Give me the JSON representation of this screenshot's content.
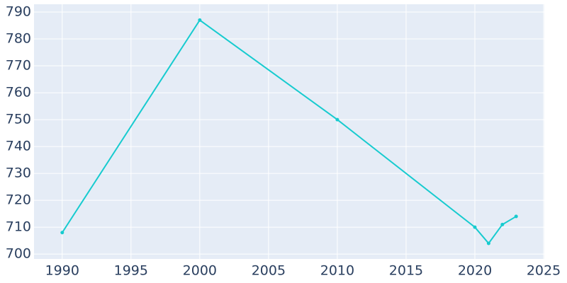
{
  "chart_data": {
    "type": "line",
    "x": [
      1990,
      2000,
      2010,
      2020,
      2021,
      2022,
      2023
    ],
    "series": [
      {
        "color": "#17cbcf",
        "values": [
          708,
          787,
          750,
          710,
          704,
          711,
          714
        ]
      }
    ],
    "xlim": [
      1987.95,
      2025.05
    ],
    "xticks": [
      1990,
      1995,
      2000,
      2005,
      2010,
      2015,
      2020,
      2025
    ],
    "ylim": [
      698.2,
      792.9
    ],
    "yticks": [
      700,
      710,
      720,
      730,
      740,
      750,
      760,
      770,
      780,
      790
    ],
    "grid": true
  }
}
